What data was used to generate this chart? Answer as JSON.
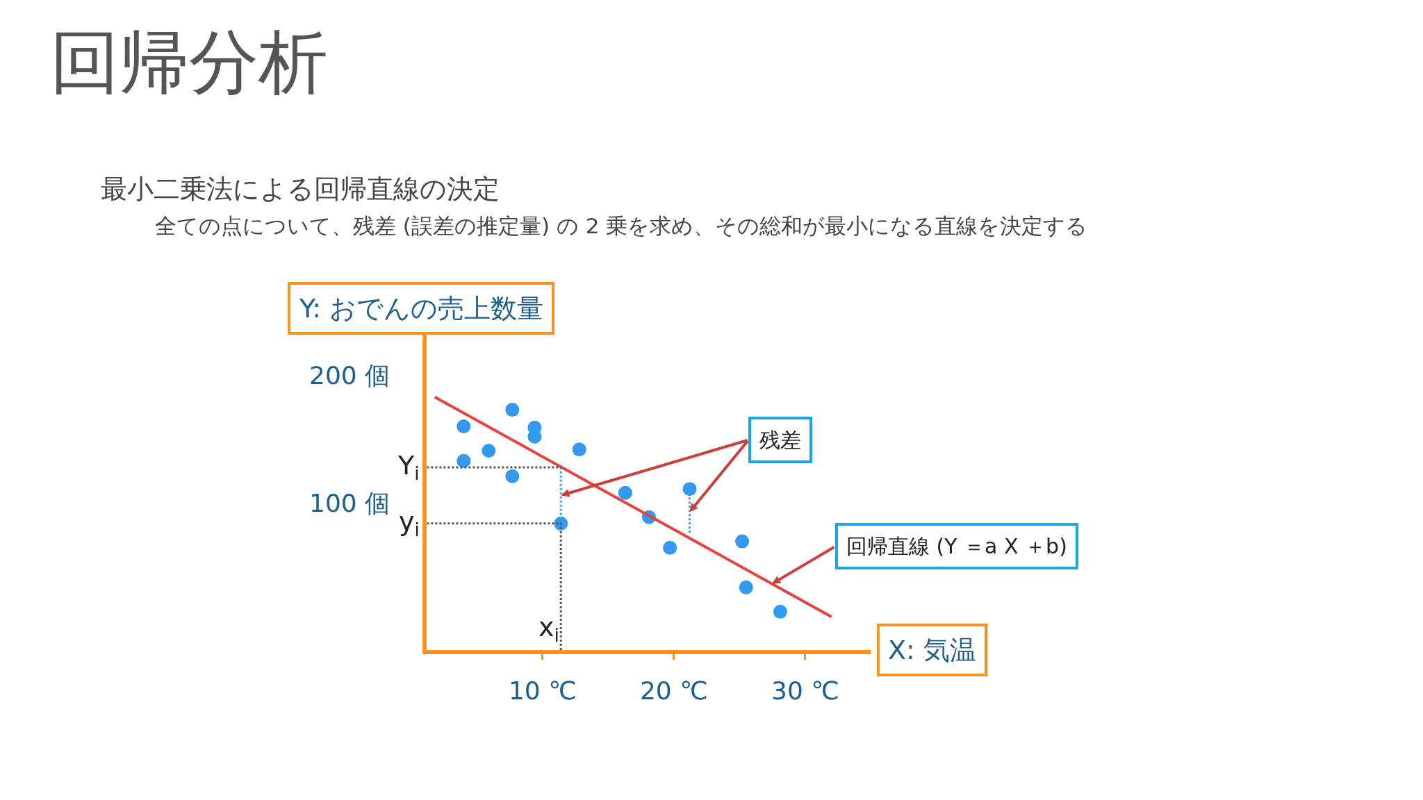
{
  "chart_data": {
    "type": "scatter",
    "title": "回帰分析",
    "subtitle": "最小二乗法による回帰直線の決定",
    "xlabel": "X: 気温",
    "ylabel": "Y: おでんの売上数量",
    "annotations": [
      "全ての点について、残差 (誤差の推定量) の 2 乗を求め、その総和が最小になる直線を決定する",
      {
        "text": "残差",
        "x": 11.4,
        "y": 106
      },
      {
        "text": "回帰直線 (Y ＝a X ＋b)",
        "x": 27.47,
        "y": 36.8
      }
    ],
    "x": [
      4.0,
      7.7,
      9.4,
      9.4,
      5.9,
      4.0,
      7.7,
      12.8,
      11.4,
      16.3,
      18.1,
      21.2,
      19.7,
      25.2,
      25.5,
      28.1
    ],
    "series": [
      {
        "color": "#3399ee",
        "marker": "circle",
        "values": [
          160,
          173,
          159,
          152,
          141,
          133,
          121,
          142,
          84,
          108,
          89,
          111,
          65,
          70,
          34,
          15
        ]
      },
      {
        "type": "line",
        "color": "#e8413f",
        "marker": "none",
        "line_style": "solid",
        "x": [
          1.8,
          32.0
        ],
        "values": [
          183,
          11
        ]
      },
      {
        "type": "line",
        "color": "#3aa0d8",
        "marker": "none",
        "line_style": "dotted",
        "x": [
          11.4,
          11.4,
          null,
          21.2,
          21.2
        ],
        "values": [
          84,
          128,
          null,
          111,
          75
        ]
      }
    ],
    "ref_lines": [
      {
        "axis": "y",
        "value": 128,
        "label": "Y$_{i}$",
        "color": "#555555",
        "line_style": "dotted"
      },
      {
        "axis": "y",
        "value": 84,
        "label": "y$_{i}$",
        "color": "#555555",
        "line_style": "dotted"
      },
      {
        "axis": "x",
        "value": 11.4,
        "label": "x$_{i}$",
        "color": "#555555",
        "line_style": "dotted"
      }
    ],
    "xlim": [
      1.2,
      35
    ],
    "ylim": [
      -15,
      232
    ],
    "xticks": [
      {
        "value": 10,
        "label": "10 ℃"
      },
      {
        "value": 20,
        "label": "20 ℃"
      },
      {
        "value": 30,
        "label": "30 ℃"
      }
    ],
    "yticks": [
      {
        "value": 100,
        "label": "100 個"
      },
      {
        "value": 200,
        "label": "200 個"
      }
    ]
  }
}
